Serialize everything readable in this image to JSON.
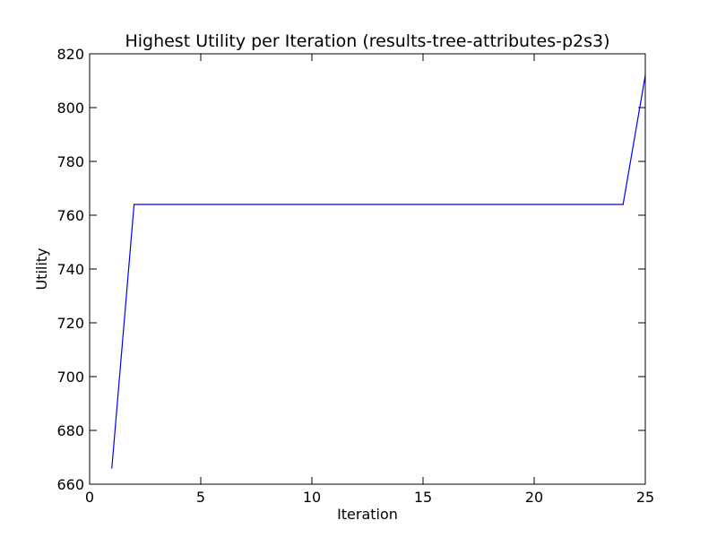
{
  "chart_data": {
    "type": "line",
    "title": "Highest Utility per Iteration (results-tree-attributes-p2s3)",
    "xlabel": "Iteration",
    "ylabel": "Utility",
    "xlim": [
      0,
      25
    ],
    "ylim": [
      660,
      820
    ],
    "x_ticks": [
      0,
      5,
      10,
      15,
      20,
      25
    ],
    "y_ticks": [
      660,
      680,
      700,
      720,
      740,
      760,
      780,
      800,
      820
    ],
    "grid": false,
    "legend": "none",
    "series": [
      {
        "color": "#0000ff",
        "x": [
          1,
          2,
          3,
          4,
          5,
          6,
          7,
          8,
          9,
          10,
          11,
          12,
          13,
          14,
          15,
          16,
          17,
          18,
          19,
          20,
          21,
          22,
          23,
          24,
          25
        ],
        "y": [
          666,
          764,
          764,
          764,
          764,
          764,
          764,
          764,
          764,
          764,
          764,
          764,
          764,
          764,
          764,
          764,
          764,
          764,
          764,
          764,
          764,
          764,
          764,
          764,
          812
        ]
      }
    ]
  }
}
